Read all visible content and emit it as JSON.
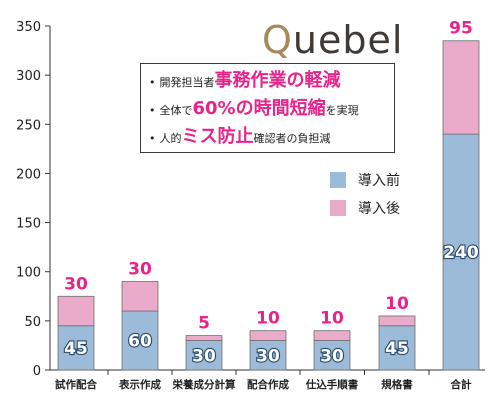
{
  "logo": {
    "q": "Q",
    "rest": "uebel"
  },
  "callout": {
    "bullet": "•",
    "lines": [
      {
        "pre": "開発担当者",
        "big": "事務作業の軽減",
        "post": ""
      },
      {
        "pre": "全体で",
        "big": "60%の時間短縮",
        "post": "を実現"
      },
      {
        "pre": "人的",
        "big": "ミス防止",
        "post": "確認者の負担減"
      }
    ]
  },
  "colors": {
    "before": "#9bbbd9",
    "after": "#eaaac9",
    "accent": "#e8238a"
  },
  "chart_data": {
    "type": "bar",
    "stacked": true,
    "categories": [
      "試作配合",
      "表示作成",
      "栄養成分計算",
      "配合作成",
      "仕込手順書",
      "規格書",
      "合計"
    ],
    "series": [
      {
        "name": "導入前",
        "values": [
          45,
          60,
          30,
          30,
          30,
          45,
          240
        ]
      },
      {
        "name": "導入後",
        "values": [
          30,
          30,
          5,
          10,
          10,
          10,
          95
        ]
      }
    ],
    "yticks": [
      "0",
      "50",
      "100",
      "150",
      "200",
      "250",
      "300",
      "350"
    ],
    "ylim": [
      0,
      350
    ],
    "legend": "right",
    "grid": false
  }
}
